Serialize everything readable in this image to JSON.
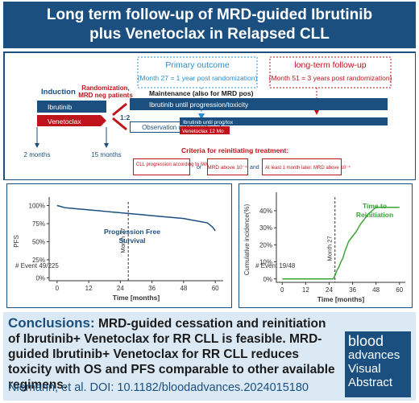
{
  "header": {
    "title": "Long term follow-up of MRD-guided Ibrutinib plus Venetoclax in Relapsed CLL"
  },
  "design": {
    "primary_outcome": {
      "title": "Primary outcome",
      "detail": "(Month 27 = 1 year post randomization)"
    },
    "long_term": {
      "title": "long-term follow-up",
      "detail": "(Month 51 = 3 years post randomization)"
    },
    "induction": "Induction",
    "induction_ibrutinib": "Ibrutinib",
    "induction_venetoclax": "Venetoclax",
    "randomization": [
      "Randomization,",
      "MRD neg patients"
    ],
    "ratio": "1:2",
    "maintenance": "Maintenance (also for MRD pos)",
    "maintenance_bar": "Ibrutinib until progression/toxicity",
    "observation": "Observation until event",
    "reinit_ibrutinib": "Ibrutinib until prog/tox",
    "reinit_venetoclax": "Venetoclax 12 Mo",
    "time_2": "2 months",
    "time_15": "15 months",
    "criteria_title": "Criteria for reinitiating treatment:",
    "criteria": [
      "CLL progression according to iWCLL",
      "MRD above 10⁻⁴",
      "At least 1 month later: MRD above 10⁻⁴"
    ],
    "or": "or",
    "and": "and"
  },
  "chart_data": [
    {
      "type": "line",
      "ylabel": "PFS",
      "xlabel": "Time [months]",
      "annotation": "Progression Free Survival",
      "events": "# Event 49/225",
      "vline_label": "Month 27",
      "vline": 27,
      "xlim": [
        -3,
        63
      ],
      "ylim": [
        -4,
        105
      ],
      "xticks": [
        0,
        12,
        24,
        36,
        48,
        60
      ],
      "yticks": [
        {
          "value": 0,
          "label": "0%"
        },
        {
          "value": 25,
          "label": "25%"
        },
        {
          "value": 50,
          "label": "50%"
        },
        {
          "value": 75,
          "label": "75%"
        },
        {
          "value": 100,
          "label": "100%"
        }
      ],
      "series": [
        {
          "color": "#1b4f7f",
          "x": [
            0,
            1,
            3,
            6,
            9,
            12,
            15,
            18,
            21,
            24,
            27,
            30,
            33,
            36,
            39,
            42,
            45,
            48,
            51,
            54,
            57,
            59,
            60
          ],
          "values": [
            100,
            99,
            97,
            96,
            95,
            94,
            93,
            92,
            91,
            90,
            89,
            88,
            87,
            86,
            85,
            84,
            83,
            82,
            80,
            78,
            76,
            70,
            65
          ]
        }
      ]
    },
    {
      "type": "line",
      "ylabel": "Cumulative incidence(%)",
      "xlabel": "Time [months]",
      "annotation": "Time to Reinitiation",
      "events": "# Event 19/48",
      "vline_label": "Month 27",
      "vline": 27,
      "xlim": [
        -3,
        63
      ],
      "ylim": [
        -2,
        48
      ],
      "xticks": [
        0,
        12,
        24,
        36,
        48,
        60
      ],
      "yticks": [
        {
          "value": 0,
          "label": "0%"
        },
        {
          "value": 10,
          "label": "10%"
        },
        {
          "value": 20,
          "label": "20%"
        },
        {
          "value": 30,
          "label": "30%"
        },
        {
          "value": 40,
          "label": "40%"
        }
      ],
      "series": [
        {
          "color": "#3aa535",
          "x": [
            0,
            26,
            27,
            28,
            29,
            30,
            31,
            32,
            33,
            34,
            36,
            38,
            40,
            42,
            44,
            46,
            48,
            60
          ],
          "values": [
            0,
            0,
            2,
            5,
            7,
            10,
            12,
            16,
            19,
            22,
            25,
            28,
            32,
            35,
            38,
            40,
            42,
            42
          ]
        }
      ]
    }
  ],
  "conclusions": {
    "label": "Conclusions:",
    "text": "MRD-guided cessation and reinitiation of Ibrutinib+ Venetoclax for RR CLL is feasible. MRD-guided Ibrutinib+ Venetoclax for RR CLL reduces toxicity with OS and PFS comparable to other available regimens."
  },
  "citation": "Niemann, et al. DOI: 10.1182/bloodadvances.2024015180",
  "logo": [
    "blood",
    "advances",
    "Visual",
    "Abstract"
  ]
}
